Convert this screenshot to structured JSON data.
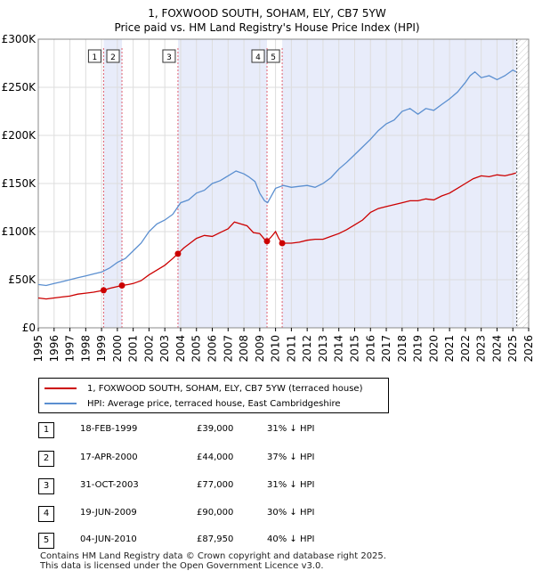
{
  "title_line1": "1, FOXWOOD SOUTH, SOHAM, ELY, CB7 5YW",
  "title_line2": "Price paid vs. HM Land Registry's House Price Index (HPI)",
  "legend": {
    "property": "1, FOXWOOD SOUTH, SOHAM, ELY, CB7 5YW (terraced house)",
    "hpi": "HPI: Average price, terraced house, East Cambridgeshire"
  },
  "colors": {
    "property": "#cc0000",
    "hpi": "#5b8fd0",
    "shade": "#e8ecfa",
    "marker_line": "#e06070"
  },
  "transactions": [
    {
      "num": "1",
      "date": "18-FEB-1999",
      "price": "£39,000",
      "hpi": "31% ↓ HPI"
    },
    {
      "num": "2",
      "date": "17-APR-2000",
      "price": "£44,000",
      "hpi": "37% ↓ HPI"
    },
    {
      "num": "3",
      "date": "31-OCT-2003",
      "price": "£77,000",
      "hpi": "31% ↓ HPI"
    },
    {
      "num": "4",
      "date": "19-JUN-2009",
      "price": "£90,000",
      "hpi": "30% ↓ HPI"
    },
    {
      "num": "5",
      "date": "04-JUN-2010",
      "price": "£87,950",
      "hpi": "40% ↓ HPI"
    }
  ],
  "footer": {
    "line1": "Contains HM Land Registry data © Crown copyright and database right 2025.",
    "line2": "This data is licensed under the Open Government Licence v3.0."
  },
  "chart_data": {
    "type": "line",
    "title": "Price paid vs. HM Land Registry's House Price Index (HPI)",
    "xlim": [
      1995,
      2026
    ],
    "ylim": [
      0,
      300000
    ],
    "x_ticks": [
      1995,
      1996,
      1997,
      1998,
      1999,
      2000,
      2001,
      2002,
      2003,
      2004,
      2005,
      2006,
      2007,
      2008,
      2009,
      2010,
      2011,
      2012,
      2013,
      2014,
      2015,
      2016,
      2017,
      2018,
      2019,
      2020,
      2021,
      2022,
      2023,
      2024,
      2025,
      2026
    ],
    "x_tick_labels": [
      "1995",
      "1996",
      "1997",
      "1998",
      "1999",
      "2000",
      "2001",
      "2002",
      "2003",
      "2004",
      "2005",
      "2006",
      "2007",
      "2008",
      "2009",
      "2010",
      "2011",
      "2012",
      "2013",
      "2014",
      "2015",
      "2016",
      "2017",
      "2018",
      "2019",
      "2020",
      "2021",
      "2022",
      "2023",
      "2024",
      "2025",
      "2026"
    ],
    "y_ticks": [
      0,
      50000,
      100000,
      150000,
      200000,
      250000,
      300000
    ],
    "y_tick_labels": [
      "£0",
      "£50K",
      "£100K",
      "£150K",
      "£200K",
      "£250K",
      "£300K"
    ],
    "shaded_ranges": [
      [
        1999.13,
        2000.29
      ],
      [
        2003.83,
        2009.46
      ],
      [
        2010.42,
        2025.25
      ]
    ],
    "future_from": 2025.25,
    "series": [
      {
        "name": "HPI: Average price, terraced house, East Cambridgeshire",
        "x": [
          1995,
          1995.5,
          1996,
          1996.5,
          1997,
          1997.5,
          1998,
          1998.5,
          1999,
          1999.5,
          2000,
          2000.5,
          2001,
          2001.5,
          2002,
          2002.5,
          2003,
          2003.5,
          2004,
          2004.5,
          2005,
          2005.5,
          2006,
          2006.5,
          2007,
          2007.5,
          2008,
          2008.3,
          2008.7,
          2009,
          2009.3,
          2009.5,
          2010,
          2010.5,
          2011,
          2011.5,
          2012,
          2012.5,
          2013,
          2013.5,
          2014,
          2014.5,
          2015,
          2015.5,
          2016,
          2016.5,
          2017,
          2017.5,
          2018,
          2018.5,
          2019,
          2019.5,
          2020,
          2020.5,
          2021,
          2021.5,
          2022,
          2022.3,
          2022.6,
          2023,
          2023.5,
          2024,
          2024.5,
          2025,
          2025.2
        ],
        "y": [
          45000,
          44000,
          46000,
          48000,
          50000,
          52000,
          54000,
          56000,
          58000,
          62000,
          68000,
          72000,
          80000,
          88000,
          100000,
          108000,
          112000,
          118000,
          130000,
          133000,
          140000,
          143000,
          150000,
          153000,
          158000,
          163000,
          160000,
          157000,
          152000,
          140000,
          132000,
          130000,
          145000,
          148000,
          146000,
          147000,
          148000,
          146000,
          150000,
          156000,
          165000,
          172000,
          180000,
          188000,
          196000,
          205000,
          212000,
          216000,
          225000,
          228000,
          222000,
          228000,
          226000,
          232000,
          238000,
          245000,
          255000,
          262000,
          266000,
          260000,
          262000,
          258000,
          262000,
          268000,
          266000
        ]
      },
      {
        "name": "1, FOXWOOD SOUTH, SOHAM, ELY, CB7 5YW (terraced house)",
        "x": [
          1995,
          1995.5,
          1996,
          1996.5,
          1997,
          1997.5,
          1998,
          1998.5,
          1999.13,
          1999.5,
          2000.29,
          2000.7,
          2001,
          2001.5,
          2002,
          2002.5,
          2003,
          2003.5,
          2003.83,
          2004.2,
          2004.6,
          2005,
          2005.5,
          2006,
          2006.5,
          2007,
          2007.4,
          2007.8,
          2008.2,
          2008.6,
          2009,
          2009.3,
          2009.46,
          2009.7,
          2010.0,
          2010.2,
          2010.42,
          2010.7,
          2011,
          2011.5,
          2012,
          2012.5,
          2013,
          2013.5,
          2014,
          2014.5,
          2015,
          2015.5,
          2016,
          2016.5,
          2017,
          2017.5,
          2018,
          2018.5,
          2019,
          2019.5,
          2020,
          2020.5,
          2021,
          2021.5,
          2022,
          2022.5,
          2023,
          2023.5,
          2024,
          2024.5,
          2025,
          2025.2
        ],
        "y": [
          31000,
          30000,
          31000,
          32000,
          33000,
          35000,
          36000,
          37000,
          39000,
          41000,
          44000,
          45000,
          46000,
          49000,
          55000,
          60000,
          65000,
          72000,
          77000,
          83000,
          88000,
          93000,
          96000,
          95000,
          99000,
          103000,
          110000,
          108000,
          106000,
          99000,
          98000,
          92000,
          90000,
          94000,
          100000,
          93000,
          87950,
          88000,
          88000,
          89000,
          91000,
          92000,
          92000,
          95000,
          98000,
          102000,
          107000,
          112000,
          120000,
          124000,
          126000,
          128000,
          130000,
          132000,
          132000,
          134000,
          133000,
          137000,
          140000,
          145000,
          150000,
          155000,
          158000,
          157000,
          159000,
          158000,
          160000,
          161000
        ]
      }
    ],
    "markers": [
      {
        "label": "1",
        "x": 1999.13,
        "y": 39000
      },
      {
        "label": "2",
        "x": 2000.29,
        "y": 44000
      },
      {
        "label": "3",
        "x": 2003.83,
        "y": 77000
      },
      {
        "label": "4",
        "x": 2009.46,
        "y": 90000
      },
      {
        "label": "5",
        "x": 2010.42,
        "y": 87950
      }
    ]
  }
}
